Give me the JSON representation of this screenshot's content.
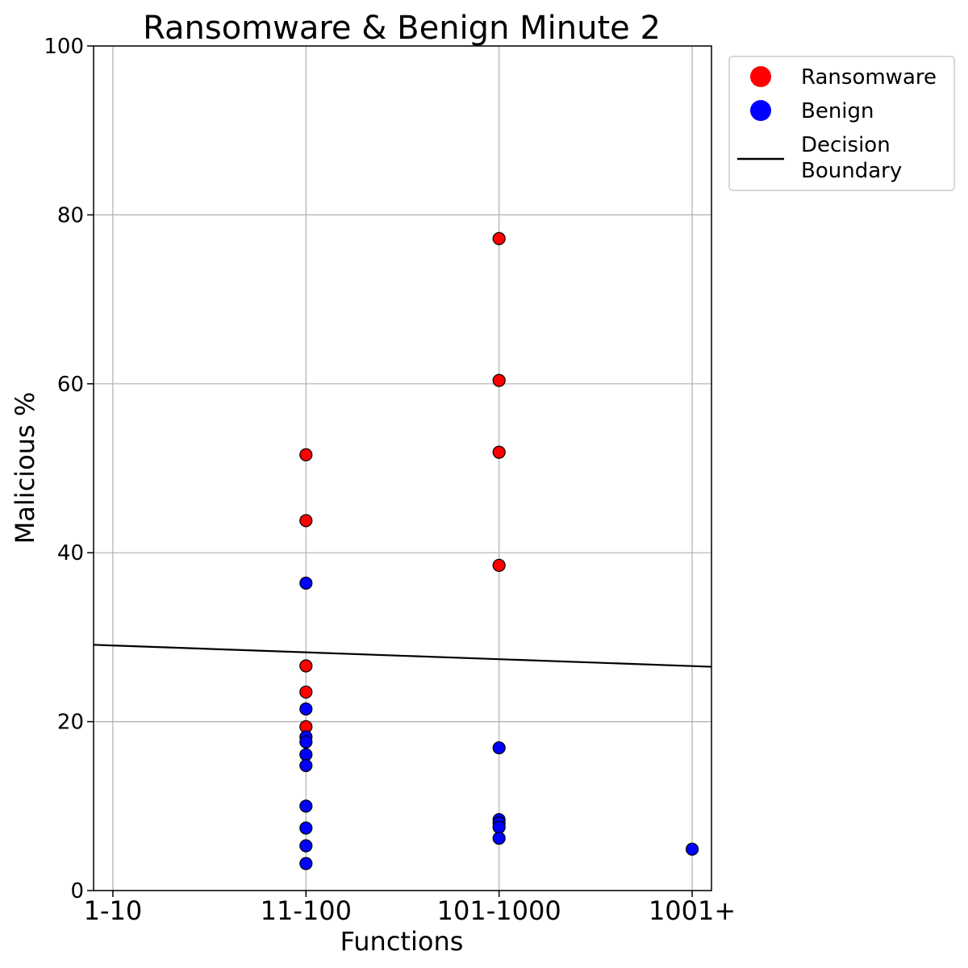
{
  "chart_data": {
    "type": "scatter",
    "title": "Ransomware & Benign Minute 2",
    "xlabel": "Functions",
    "ylabel": "Malicious %",
    "x_categories": [
      "1-10",
      "11-100",
      "101-1000",
      "1001+"
    ],
    "xlim": [
      -0.1,
      3.1
    ],
    "ylim": [
      0,
      100
    ],
    "yticks": [
      0,
      20,
      40,
      60,
      80,
      100
    ],
    "grid": true,
    "legend_position": "outside-top-right",
    "series": [
      {
        "name": "Ransomware",
        "color": "#ff0000",
        "points": [
          {
            "x": "11-100",
            "y": 51.6
          },
          {
            "x": "11-100",
            "y": 43.8
          },
          {
            "x": "11-100",
            "y": 26.6
          },
          {
            "x": "11-100",
            "y": 23.5
          },
          {
            "x": "11-100",
            "y": 19.4
          },
          {
            "x": "101-1000",
            "y": 77.2
          },
          {
            "x": "101-1000",
            "y": 60.4
          },
          {
            "x": "101-1000",
            "y": 51.9
          },
          {
            "x": "101-1000",
            "y": 38.5
          }
        ]
      },
      {
        "name": "Benign",
        "color": "#0000ff",
        "points": [
          {
            "x": "11-100",
            "y": 36.4
          },
          {
            "x": "11-100",
            "y": 21.5
          },
          {
            "x": "11-100",
            "y": 18.2
          },
          {
            "x": "11-100",
            "y": 17.6
          },
          {
            "x": "11-100",
            "y": 16.1
          },
          {
            "x": "11-100",
            "y": 14.8
          },
          {
            "x": "11-100",
            "y": 10.0
          },
          {
            "x": "11-100",
            "y": 7.4
          },
          {
            "x": "11-100",
            "y": 5.3
          },
          {
            "x": "11-100",
            "y": 3.2
          },
          {
            "x": "101-1000",
            "y": 16.9
          },
          {
            "x": "101-1000",
            "y": 8.4
          },
          {
            "x": "101-1000",
            "y": 8.0
          },
          {
            "x": "101-1000",
            "y": 7.5
          },
          {
            "x": "101-1000",
            "y": 6.2
          },
          {
            "x": "1001+",
            "y": 4.9
          }
        ]
      }
    ],
    "decision_boundary": {
      "name": "Decision\nBoundary",
      "color": "#000000",
      "x_at_left_edge_y": 29.1,
      "x_at_right_edge_y": 26.5
    },
    "legend": [
      "Ransomware",
      "Benign",
      "Decision\nBoundary"
    ]
  }
}
